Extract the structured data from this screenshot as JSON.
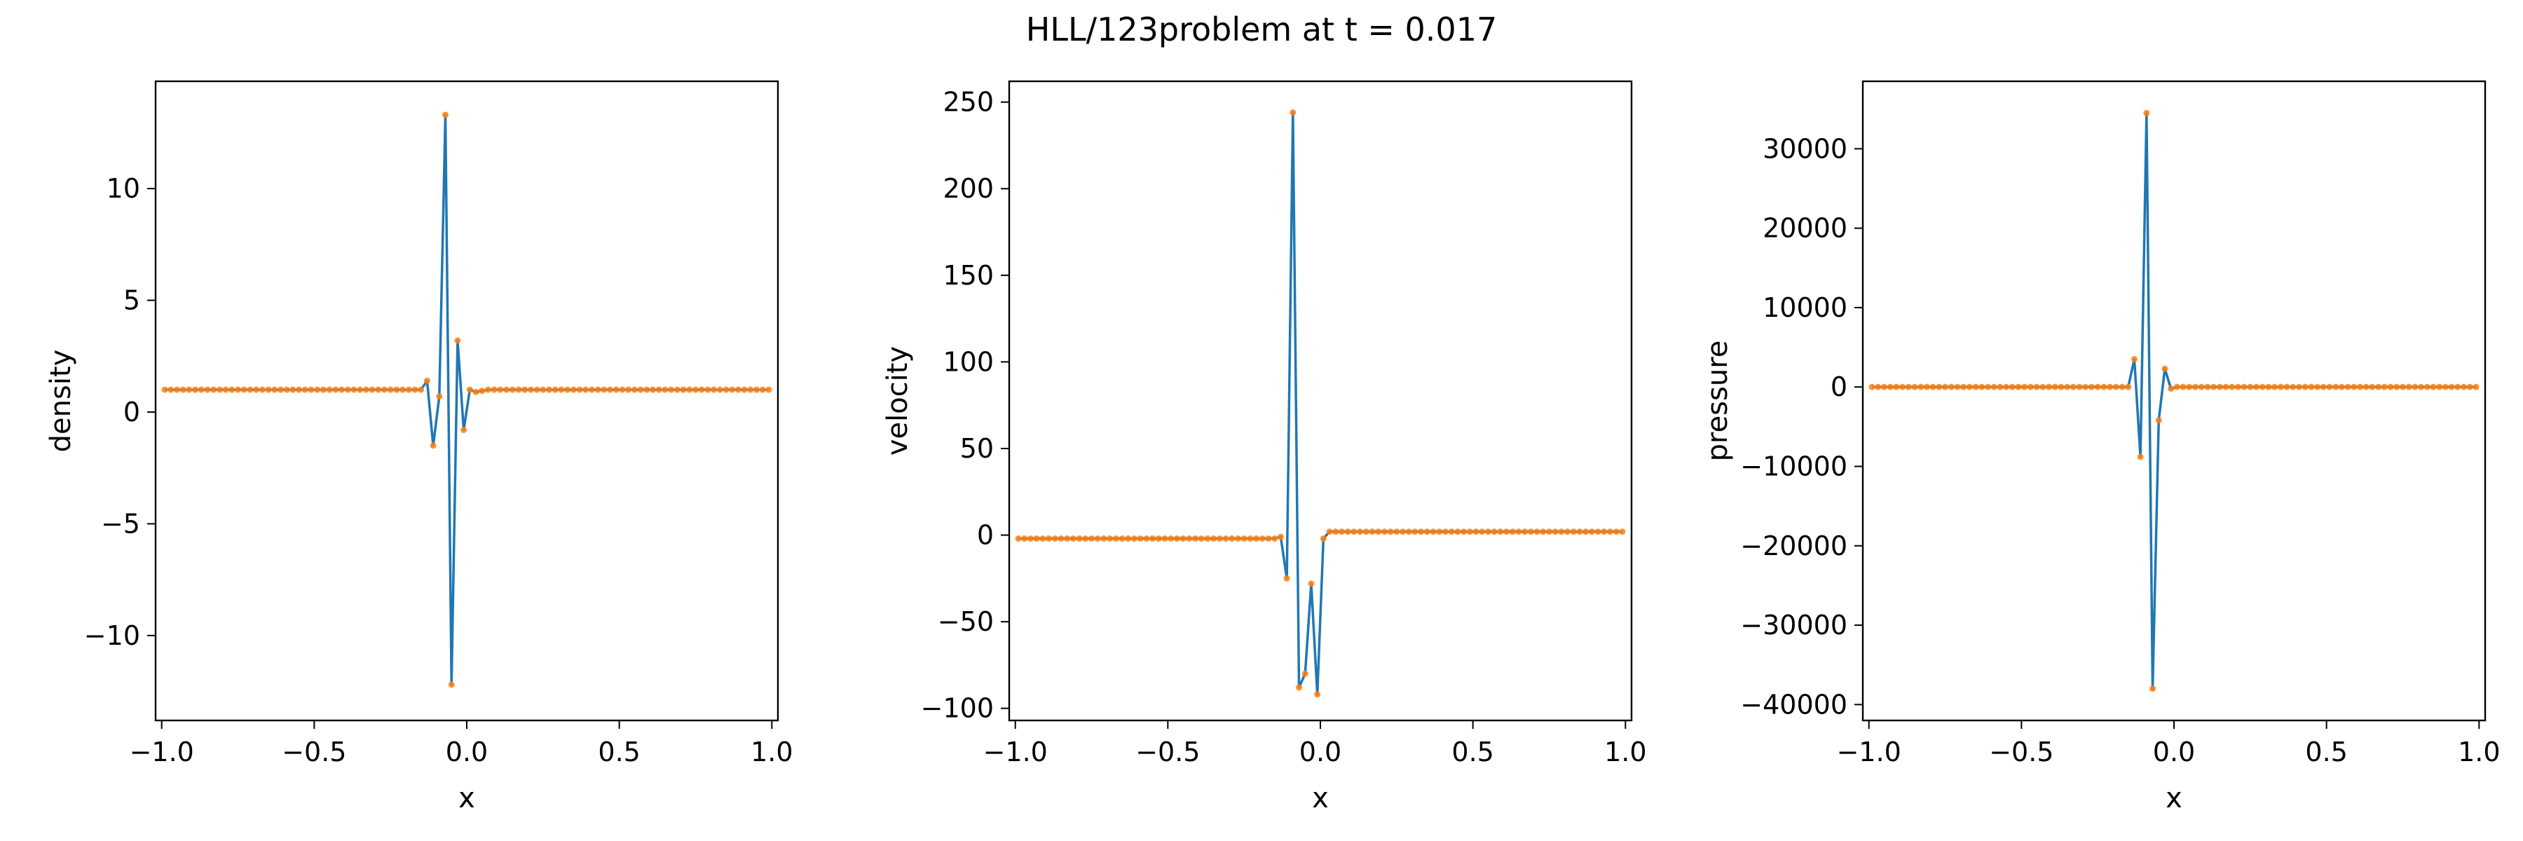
{
  "figure": {
    "suptitle": "HLL/123problem at t = 0.017"
  },
  "colors": {
    "line": "#1f77b4",
    "marker": "#ff7f0e",
    "axes": "#000000",
    "background": "#ffffff"
  },
  "chart_data": [
    {
      "type": "line",
      "xlabel": "x",
      "ylabel": "density",
      "xlim": [
        -1.02,
        1.02
      ],
      "ylim": [
        -13.8,
        14.8
      ],
      "grid": false,
      "legend": "none",
      "xticks": [
        -1.0,
        -0.5,
        0.0,
        0.5,
        1.0
      ],
      "xtick_labels": [
        "−1.0",
        "−0.5",
        "0.0",
        "0.5",
        "1.0"
      ],
      "yticks": [
        -10,
        -5,
        0,
        5,
        10
      ],
      "ytick_labels": [
        "−10",
        "−5",
        "0",
        "5",
        "10"
      ],
      "series": [
        {
          "x": [
            -0.19,
            -0.17,
            -0.15,
            -0.13,
            -0.11,
            -0.09,
            -0.07,
            -0.05,
            -0.03,
            -0.01,
            0.01,
            0.03,
            0.05,
            0.07
          ],
          "y": [
            1.0,
            1.0,
            1.0,
            1.4,
            -1.5,
            0.7,
            13.3,
            -12.2,
            3.2,
            -0.8,
            1.0,
            0.9,
            0.95,
            1.0
          ],
          "left_value": 1.0,
          "right_value": 1.0
        }
      ]
    },
    {
      "type": "line",
      "xlabel": "x",
      "ylabel": "velocity",
      "xlim": [
        -1.02,
        1.02
      ],
      "ylim": [
        -107,
        262
      ],
      "grid": false,
      "legend": "none",
      "xticks": [
        -1.0,
        -0.5,
        0.0,
        0.5,
        1.0
      ],
      "xtick_labels": [
        "−1.0",
        "−0.5",
        "0.0",
        "0.5",
        "1.0"
      ],
      "yticks": [
        -100,
        -50,
        0,
        50,
        100,
        150,
        200,
        250
      ],
      "ytick_labels": [
        "−100",
        "−50",
        "0",
        "50",
        "100",
        "150",
        "200",
        "250"
      ],
      "series": [
        {
          "x": [
            -0.19,
            -0.17,
            -0.15,
            -0.13,
            -0.11,
            -0.09,
            -0.07,
            -0.05,
            -0.03,
            -0.01,
            0.01,
            0.03,
            0.05
          ],
          "y": [
            -2.0,
            -2.0,
            -2.0,
            -1.0,
            -25,
            244,
            -88,
            -80,
            -28,
            -92,
            -2,
            2,
            2
          ],
          "left_value": -2.0,
          "right_value": 2.0
        }
      ]
    },
    {
      "type": "line",
      "xlabel": "x",
      "ylabel": "pressure",
      "xlim": [
        -1.02,
        1.02
      ],
      "ylim": [
        -42000,
        38500
      ],
      "grid": false,
      "legend": "none",
      "xticks": [
        -1.0,
        -0.5,
        0.0,
        0.5,
        1.0
      ],
      "xtick_labels": [
        "−1.0",
        "−0.5",
        "0.0",
        "0.5",
        "1.0"
      ],
      "yticks": [
        -40000,
        -30000,
        -20000,
        -10000,
        0,
        10000,
        20000,
        30000
      ],
      "ytick_labels": [
        "−40000",
        "−30000",
        "−20000",
        "−10000",
        "0",
        "10000",
        "20000",
        "30000"
      ],
      "series": [
        {
          "x": [
            -0.17,
            -0.15,
            -0.13,
            -0.11,
            -0.09,
            -0.07,
            -0.05,
            -0.03,
            -0.01,
            0.01,
            0.03
          ],
          "y": [
            0,
            0,
            3500,
            -8800,
            34500,
            -38000,
            -4200,
            2300,
            -200,
            0,
            0
          ],
          "left_value": 0.4,
          "right_value": 0.4
        }
      ]
    }
  ]
}
